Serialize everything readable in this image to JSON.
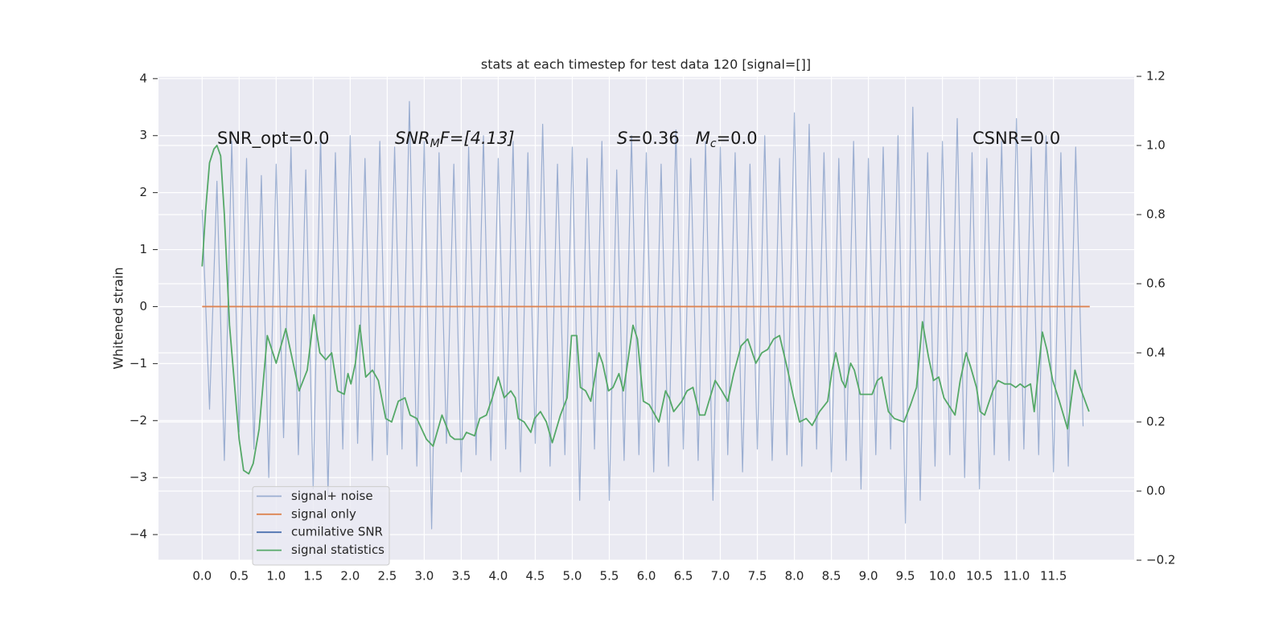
{
  "chart_data": {
    "type": "line",
    "title": "stats at each timestep for test data 120 [signal=[]]",
    "y_label": "Whitened strain",
    "xlim": [
      -0.59,
      12.59
    ],
    "ylim": [
      -4.45,
      4.04
    ],
    "y2lim": [
      -0.2,
      1.2
    ],
    "xticks": [
      {
        "value": 0,
        "label": "0.0"
      },
      0.5,
      {
        "value": 1,
        "label": "1.0"
      },
      1.5,
      {
        "value": 2,
        "label": "2.0"
      },
      2.5,
      {
        "value": 3,
        "label": "3.0"
      },
      3.5,
      {
        "value": 4,
        "label": "4.0"
      },
      4.5,
      {
        "value": 5,
        "label": "5.0"
      },
      5.5,
      {
        "value": 6,
        "label": "6.0"
      },
      6.5,
      {
        "value": 7,
        "label": "7.0"
      },
      7.5,
      {
        "value": 8,
        "label": "8.0"
      },
      8.5,
      {
        "value": 9,
        "label": "9.0"
      },
      9.5,
      {
        "value": 10,
        "label": "10.0"
      },
      10.5,
      {
        "value": 11,
        "label": "11.0"
      },
      11.5
    ],
    "yticks": [
      4,
      3,
      2,
      1,
      0,
      {
        "value": -1,
        "label": "−1"
      },
      {
        "value": -2,
        "label": "−2"
      },
      {
        "value": -3,
        "label": "−3"
      },
      {
        "value": -4,
        "label": "−4"
      }
    ],
    "y2ticks": [
      1.2,
      {
        "value": 1,
        "label": "1.0"
      },
      0.8,
      0.6,
      0.4,
      0.2,
      {
        "value": 0,
        "label": "0.0"
      },
      {
        "value": -0.2,
        "label": "−0.2"
      }
    ],
    "grid": true,
    "legend": "lower left",
    "annotations": [
      [
        "SNR_opt=0.0"
      ],
      [
        "SNR",
        "M",
        "F=[4.13]"
      ],
      [
        "S",
        "=0.36   ",
        "M",
        "c",
        "=0.0"
      ],
      [
        "CSNR=0.0"
      ]
    ],
    "series": [
      {
        "name": "signal+ noise",
        "color": "#4c72b0",
        "alpha": 0.5,
        "x": [
          0,
          0.1,
          0.2,
          0.3,
          0.4,
          0.5,
          0.6,
          0.7,
          0.8,
          0.9,
          1,
          1.1,
          1.2,
          1.3,
          1.4,
          1.5,
          1.6,
          1.7,
          1.8,
          1.9,
          2,
          2.1,
          2.2,
          2.3,
          2.4,
          2.5,
          2.6,
          2.7,
          2.8,
          2.9,
          3,
          3.1,
          3.2,
          3.3,
          3.4,
          3.5,
          3.6,
          3.7,
          3.8,
          3.9,
          4,
          4.1,
          4.2,
          4.3,
          4.4,
          4.5,
          4.6,
          4.7,
          4.8,
          4.9,
          5,
          5.1,
          5.2,
          5.3,
          5.4,
          5.5,
          5.6,
          5.7,
          5.8,
          5.9,
          6,
          6.1,
          6.2,
          6.3,
          6.4,
          6.5,
          6.6,
          6.7,
          6.8,
          6.9,
          7,
          7.1,
          7.2,
          7.3,
          7.4,
          7.5,
          7.6,
          7.7,
          7.8,
          7.9,
          8,
          8.1,
          8.2,
          8.3,
          8.4,
          8.5,
          8.6,
          8.7,
          8.8,
          8.9,
          9,
          9.1,
          9.2,
          9.3,
          9.4,
          9.5,
          9.6,
          9.7,
          9.8,
          9.9,
          10,
          10.1,
          10.2,
          10.3,
          10.4,
          10.5,
          10.6,
          10.7,
          10.8,
          10.9,
          11,
          11.1,
          11.2,
          11.3,
          11.4,
          11.5,
          11.6,
          11.7,
          11.8,
          11.9
        ],
        "values": [
          1.7,
          -1.8,
          2.2,
          -2.7,
          2.9,
          -2.2,
          2.6,
          -2.5,
          2.3,
          -3.0,
          2.5,
          -2.3,
          2.8,
          -2.6,
          2.4,
          -3.2,
          3.0,
          -3.3,
          2.7,
          -2.5,
          3.0,
          -2.4,
          2.6,
          -2.7,
          2.9,
          -2.6,
          2.8,
          -2.5,
          3.6,
          -2.8,
          2.9,
          -3.9,
          2.7,
          -2.4,
          2.5,
          -2.9,
          2.8,
          -2.6,
          3.0,
          -2.7,
          2.6,
          -2.5,
          2.9,
          -2.9,
          2.7,
          -2.4,
          3.2,
          -2.8,
          2.5,
          -2.6,
          2.8,
          -3.4,
          2.6,
          -2.5,
          2.9,
          -3.4,
          2.4,
          -2.7,
          3.0,
          -2.6,
          2.7,
          -2.9,
          2.5,
          -2.8,
          3.1,
          -2.5,
          2.6,
          -2.7,
          2.9,
          -3.4,
          2.8,
          -2.6,
          2.7,
          -2.9,
          2.5,
          -2.5,
          3.0,
          -2.7,
          2.6,
          -2.6,
          3.4,
          -2.8,
          3.2,
          -2.5,
          2.7,
          -2.9,
          2.6,
          -2.7,
          2.9,
          -3.2,
          2.6,
          -2.6,
          2.8,
          -2.5,
          3.0,
          -3.8,
          3.5,
          -3.4,
          2.7,
          -2.8,
          2.9,
          -2.6,
          3.3,
          -3.0,
          2.7,
          -3.2,
          2.6,
          -2.6,
          2.9,
          -2.7,
          3.3,
          -2.5,
          2.8,
          -2.6,
          3.0,
          -2.9,
          2.7,
          -2.8,
          2.8,
          -2.1
        ]
      },
      {
        "name": "signal only",
        "color": "#dd8452",
        "x": [
          0,
          11.99
        ],
        "values": [
          0,
          0
        ]
      },
      {
        "name": "cumilative SNR",
        "color": "#4c72b0",
        "x": [],
        "values": []
      },
      {
        "name": "signal statistics",
        "color": "#55a868",
        "axis": "y2",
        "x": [
          0,
          0.05,
          0.1,
          0.16,
          0.2,
          0.25,
          0.3,
          0.37,
          0.46,
          0.5,
          0.56,
          0.63,
          0.69,
          0.77,
          0.88,
          1.0,
          1.13,
          1.31,
          1.42,
          1.51,
          1.59,
          1.67,
          1.75,
          1.83,
          1.92,
          1.97,
          2.01,
          2.07,
          2.13,
          2.21,
          2.3,
          2.38,
          2.48,
          2.56,
          2.65,
          2.74,
          2.81,
          2.9,
          3.03,
          3.12,
          3.24,
          3.35,
          3.41,
          3.52,
          3.57,
          3.68,
          3.75,
          3.84,
          3.92,
          4.0,
          4.08,
          4.17,
          4.23,
          4.27,
          4.35,
          4.44,
          4.49,
          4.57,
          4.65,
          4.73,
          4.84,
          4.93,
          4.99,
          5.06,
          5.11,
          5.18,
          5.25,
          5.36,
          5.41,
          5.49,
          5.55,
          5.63,
          5.69,
          5.74,
          5.82,
          5.88,
          5.96,
          6.04,
          6.17,
          6.26,
          6.31,
          6.37,
          6.48,
          6.55,
          6.63,
          6.72,
          6.79,
          6.93,
          7.02,
          7.1,
          7.18,
          7.28,
          7.37,
          7.48,
          7.56,
          7.64,
          7.72,
          7.8,
          7.91,
          7.99,
          8.07,
          8.16,
          8.24,
          8.34,
          8.45,
          8.51,
          8.56,
          8.64,
          8.69,
          8.76,
          8.81,
          8.89,
          9.05,
          9.12,
          9.18,
          9.27,
          9.35,
          9.48,
          9.57,
          9.65,
          9.73,
          9.81,
          9.88,
          9.95,
          10.02,
          10.08,
          10.17,
          10.24,
          10.32,
          10.38,
          10.46,
          10.51,
          10.57,
          10.68,
          10.75,
          10.84,
          10.92,
          10.99,
          11.05,
          11.11,
          11.19,
          11.24,
          11.35,
          11.41,
          11.49,
          11.58,
          11.69,
          11.79,
          11.86,
          11.98
        ],
        "values": [
          0.65,
          0.82,
          0.95,
          0.99,
          1.0,
          0.97,
          0.8,
          0.48,
          0.25,
          0.15,
          0.06,
          0.05,
          0.08,
          0.18,
          0.45,
          0.37,
          0.47,
          0.29,
          0.35,
          0.51,
          0.4,
          0.38,
          0.4,
          0.29,
          0.28,
          0.34,
          0.31,
          0.37,
          0.48,
          0.33,
          0.35,
          0.32,
          0.21,
          0.2,
          0.26,
          0.27,
          0.22,
          0.21,
          0.15,
          0.13,
          0.22,
          0.16,
          0.15,
          0.15,
          0.17,
          0.16,
          0.21,
          0.22,
          0.27,
          0.33,
          0.27,
          0.29,
          0.27,
          0.21,
          0.2,
          0.17,
          0.21,
          0.23,
          0.2,
          0.14,
          0.22,
          0.27,
          0.45,
          0.45,
          0.3,
          0.29,
          0.26,
          0.4,
          0.37,
          0.29,
          0.3,
          0.34,
          0.29,
          0.36,
          0.48,
          0.44,
          0.26,
          0.25,
          0.2,
          0.29,
          0.27,
          0.23,
          0.26,
          0.29,
          0.3,
          0.22,
          0.22,
          0.32,
          0.29,
          0.26,
          0.34,
          0.42,
          0.44,
          0.37,
          0.4,
          0.41,
          0.44,
          0.45,
          0.35,
          0.27,
          0.2,
          0.21,
          0.19,
          0.23,
          0.26,
          0.35,
          0.4,
          0.32,
          0.3,
          0.37,
          0.35,
          0.28,
          0.28,
          0.32,
          0.33,
          0.23,
          0.21,
          0.2,
          0.25,
          0.3,
          0.49,
          0.39,
          0.32,
          0.33,
          0.27,
          0.25,
          0.22,
          0.32,
          0.4,
          0.36,
          0.3,
          0.23,
          0.22,
          0.29,
          0.32,
          0.31,
          0.31,
          0.3,
          0.31,
          0.3,
          0.31,
          0.23,
          0.46,
          0.41,
          0.32,
          0.26,
          0.18,
          0.35,
          0.3,
          0.23
        ]
      }
    ]
  }
}
